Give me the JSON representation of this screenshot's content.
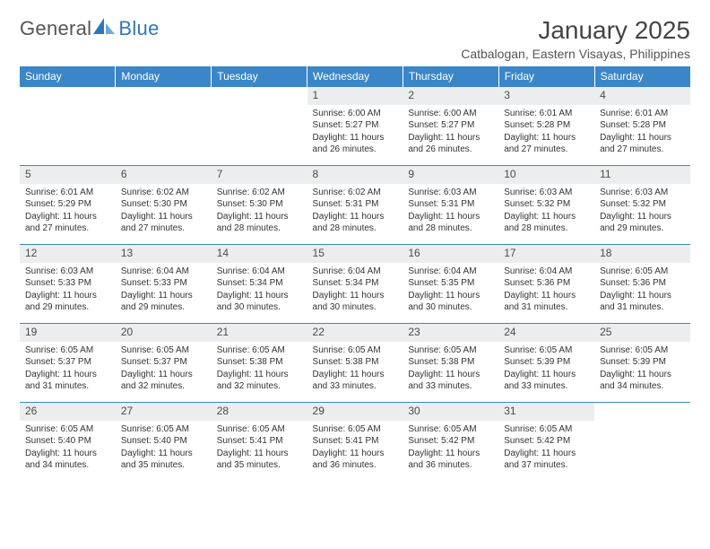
{
  "brand": {
    "name_a": "General",
    "name_b": "Blue"
  },
  "title": "January 2025",
  "location": "Catbalogan, Eastern Visayas, Philippines",
  "colors": {
    "header_bg": "#3a86c8",
    "header_text": "#ffffff",
    "daynum_bg": "#ecedef",
    "border": "#3a86c8",
    "text": "#333333",
    "logo_blue": "#2f77bb"
  },
  "fonts": {
    "title_size": 28,
    "location_size": 14,
    "header_size": 12,
    "daynum_size": 12,
    "body_size": 10
  },
  "day_headers": [
    "Sunday",
    "Monday",
    "Tuesday",
    "Wednesday",
    "Thursday",
    "Friday",
    "Saturday"
  ],
  "weeks": [
    [
      {
        "n": "",
        "sunrise": "",
        "sunset": "",
        "daylight": ""
      },
      {
        "n": "",
        "sunrise": "",
        "sunset": "",
        "daylight": ""
      },
      {
        "n": "",
        "sunrise": "",
        "sunset": "",
        "daylight": ""
      },
      {
        "n": "1",
        "sunrise": "Sunrise: 6:00 AM",
        "sunset": "Sunset: 5:27 PM",
        "daylight": "Daylight: 11 hours and 26 minutes."
      },
      {
        "n": "2",
        "sunrise": "Sunrise: 6:00 AM",
        "sunset": "Sunset: 5:27 PM",
        "daylight": "Daylight: 11 hours and 26 minutes."
      },
      {
        "n": "3",
        "sunrise": "Sunrise: 6:01 AM",
        "sunset": "Sunset: 5:28 PM",
        "daylight": "Daylight: 11 hours and 27 minutes."
      },
      {
        "n": "4",
        "sunrise": "Sunrise: 6:01 AM",
        "sunset": "Sunset: 5:28 PM",
        "daylight": "Daylight: 11 hours and 27 minutes."
      }
    ],
    [
      {
        "n": "5",
        "sunrise": "Sunrise: 6:01 AM",
        "sunset": "Sunset: 5:29 PM",
        "daylight": "Daylight: 11 hours and 27 minutes."
      },
      {
        "n": "6",
        "sunrise": "Sunrise: 6:02 AM",
        "sunset": "Sunset: 5:30 PM",
        "daylight": "Daylight: 11 hours and 27 minutes."
      },
      {
        "n": "7",
        "sunrise": "Sunrise: 6:02 AM",
        "sunset": "Sunset: 5:30 PM",
        "daylight": "Daylight: 11 hours and 28 minutes."
      },
      {
        "n": "8",
        "sunrise": "Sunrise: 6:02 AM",
        "sunset": "Sunset: 5:31 PM",
        "daylight": "Daylight: 11 hours and 28 minutes."
      },
      {
        "n": "9",
        "sunrise": "Sunrise: 6:03 AM",
        "sunset": "Sunset: 5:31 PM",
        "daylight": "Daylight: 11 hours and 28 minutes."
      },
      {
        "n": "10",
        "sunrise": "Sunrise: 6:03 AM",
        "sunset": "Sunset: 5:32 PM",
        "daylight": "Daylight: 11 hours and 28 minutes."
      },
      {
        "n": "11",
        "sunrise": "Sunrise: 6:03 AM",
        "sunset": "Sunset: 5:32 PM",
        "daylight": "Daylight: 11 hours and 29 minutes."
      }
    ],
    [
      {
        "n": "12",
        "sunrise": "Sunrise: 6:03 AM",
        "sunset": "Sunset: 5:33 PM",
        "daylight": "Daylight: 11 hours and 29 minutes."
      },
      {
        "n": "13",
        "sunrise": "Sunrise: 6:04 AM",
        "sunset": "Sunset: 5:33 PM",
        "daylight": "Daylight: 11 hours and 29 minutes."
      },
      {
        "n": "14",
        "sunrise": "Sunrise: 6:04 AM",
        "sunset": "Sunset: 5:34 PM",
        "daylight": "Daylight: 11 hours and 30 minutes."
      },
      {
        "n": "15",
        "sunrise": "Sunrise: 6:04 AM",
        "sunset": "Sunset: 5:34 PM",
        "daylight": "Daylight: 11 hours and 30 minutes."
      },
      {
        "n": "16",
        "sunrise": "Sunrise: 6:04 AM",
        "sunset": "Sunset: 5:35 PM",
        "daylight": "Daylight: 11 hours and 30 minutes."
      },
      {
        "n": "17",
        "sunrise": "Sunrise: 6:04 AM",
        "sunset": "Sunset: 5:36 PM",
        "daylight": "Daylight: 11 hours and 31 minutes."
      },
      {
        "n": "18",
        "sunrise": "Sunrise: 6:05 AM",
        "sunset": "Sunset: 5:36 PM",
        "daylight": "Daylight: 11 hours and 31 minutes."
      }
    ],
    [
      {
        "n": "19",
        "sunrise": "Sunrise: 6:05 AM",
        "sunset": "Sunset: 5:37 PM",
        "daylight": "Daylight: 11 hours and 31 minutes."
      },
      {
        "n": "20",
        "sunrise": "Sunrise: 6:05 AM",
        "sunset": "Sunset: 5:37 PM",
        "daylight": "Daylight: 11 hours and 32 minutes."
      },
      {
        "n": "21",
        "sunrise": "Sunrise: 6:05 AM",
        "sunset": "Sunset: 5:38 PM",
        "daylight": "Daylight: 11 hours and 32 minutes."
      },
      {
        "n": "22",
        "sunrise": "Sunrise: 6:05 AM",
        "sunset": "Sunset: 5:38 PM",
        "daylight": "Daylight: 11 hours and 33 minutes."
      },
      {
        "n": "23",
        "sunrise": "Sunrise: 6:05 AM",
        "sunset": "Sunset: 5:38 PM",
        "daylight": "Daylight: 11 hours and 33 minutes."
      },
      {
        "n": "24",
        "sunrise": "Sunrise: 6:05 AM",
        "sunset": "Sunset: 5:39 PM",
        "daylight": "Daylight: 11 hours and 33 minutes."
      },
      {
        "n": "25",
        "sunrise": "Sunrise: 6:05 AM",
        "sunset": "Sunset: 5:39 PM",
        "daylight": "Daylight: 11 hours and 34 minutes."
      }
    ],
    [
      {
        "n": "26",
        "sunrise": "Sunrise: 6:05 AM",
        "sunset": "Sunset: 5:40 PM",
        "daylight": "Daylight: 11 hours and 34 minutes."
      },
      {
        "n": "27",
        "sunrise": "Sunrise: 6:05 AM",
        "sunset": "Sunset: 5:40 PM",
        "daylight": "Daylight: 11 hours and 35 minutes."
      },
      {
        "n": "28",
        "sunrise": "Sunrise: 6:05 AM",
        "sunset": "Sunset: 5:41 PM",
        "daylight": "Daylight: 11 hours and 35 minutes."
      },
      {
        "n": "29",
        "sunrise": "Sunrise: 6:05 AM",
        "sunset": "Sunset: 5:41 PM",
        "daylight": "Daylight: 11 hours and 36 minutes."
      },
      {
        "n": "30",
        "sunrise": "Sunrise: 6:05 AM",
        "sunset": "Sunset: 5:42 PM",
        "daylight": "Daylight: 11 hours and 36 minutes."
      },
      {
        "n": "31",
        "sunrise": "Sunrise: 6:05 AM",
        "sunset": "Sunset: 5:42 PM",
        "daylight": "Daylight: 11 hours and 37 minutes."
      },
      {
        "n": "",
        "sunrise": "",
        "sunset": "",
        "daylight": ""
      }
    ]
  ]
}
